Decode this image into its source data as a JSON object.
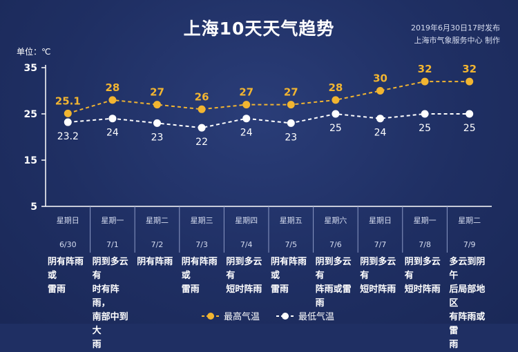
{
  "header": {
    "title": "上海10天天气趋势",
    "publish_line1": "2019年6月30日17时发布",
    "publish_line2": "上海市气象服务中心  制作"
  },
  "chart_data": {
    "type": "line",
    "unit": "单位：℃",
    "ylim": [
      5,
      35
    ],
    "yticks": [
      5,
      15,
      25,
      35
    ],
    "grid": false,
    "legend_placement": "bottom",
    "days": [
      {
        "weekday": "星期日",
        "date": "6/30",
        "weather": "阴有阵雨或雷雨"
      },
      {
        "weekday": "星期一",
        "date": "7/1",
        "weather": "阴到多云有时有阵雨，南部中到大雨"
      },
      {
        "weekday": "星期二",
        "date": "7/2",
        "weather": "阴有阵雨"
      },
      {
        "weekday": "星期三",
        "date": "7/3",
        "weather": "阴有阵雨或雷雨"
      },
      {
        "weekday": "星期四",
        "date": "7/4",
        "weather": "阴到多云有短时阵雨"
      },
      {
        "weekday": "星期五",
        "date": "7/5",
        "weather": "阴有阵雨或雷雨"
      },
      {
        "weekday": "星期六",
        "date": "7/6",
        "weather": "阴到多云有阵雨或雷雨"
      },
      {
        "weekday": "星期日",
        "date": "7/7",
        "weather": "阴到多云有短时阵雨"
      },
      {
        "weekday": "星期一",
        "date": "7/8",
        "weather": "阴到多云有短时阵雨"
      },
      {
        "weekday": "星期二",
        "date": "7/9",
        "weather": "多云到阴午后局部地区有阵雨或雷雨"
      }
    ],
    "series": [
      {
        "name": "最高气温",
        "color": "#f2b531",
        "values": [
          25.1,
          28,
          27,
          26,
          27,
          27,
          28,
          30,
          32,
          32
        ],
        "labels": [
          "25.1",
          "28",
          "27",
          "26",
          "27",
          "27",
          "28",
          "30",
          "32",
          "32"
        ]
      },
      {
        "name": "最低气温",
        "color": "#ffffff",
        "values": [
          23.2,
          24,
          23,
          22,
          24,
          23,
          25,
          24,
          25,
          25
        ],
        "labels": [
          "23.2",
          "24",
          "23",
          "22",
          "24",
          "23",
          "25",
          "24",
          "25",
          "25"
        ]
      }
    ]
  }
}
